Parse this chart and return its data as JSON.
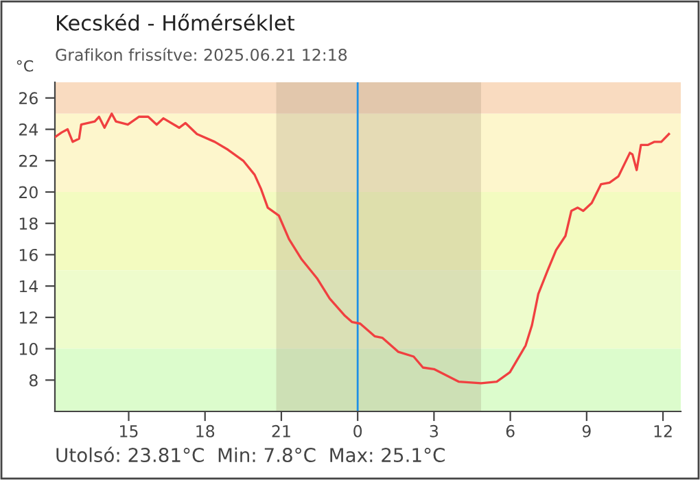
{
  "chart_data": {
    "type": "line",
    "title": "Kecskéd - Hőmérséklet",
    "subtitle": "Grafikon frissítve: 2025.06.21 12:18",
    "ylabel": "°C",
    "annotations": [
      "Utolsó: 23.81°C  Min: 7.8°C  Max: 25.1°C"
    ],
    "series": [
      {
        "color": "#f04040",
        "x": [
          "2025-06-20T12:06",
          "2025-06-20T12:22",
          "2025-06-20T12:36",
          "2025-06-20T12:48",
          "2025-06-20T13:03",
          "2025-06-20T13:08",
          "2025-06-20T13:40",
          "2025-06-20T13:50",
          "2025-06-20T14:03",
          "2025-06-20T14:20",
          "2025-06-20T14:30",
          "2025-06-20T14:58",
          "2025-06-20T15:24",
          "2025-06-20T15:46",
          "2025-06-20T16:06",
          "2025-06-20T16:22",
          "2025-06-20T16:59",
          "2025-06-20T17:14",
          "2025-06-20T17:41",
          "2025-06-20T18:23",
          "2025-06-20T18:54",
          "2025-06-20T19:30",
          "2025-06-20T19:57",
          "2025-06-20T20:12",
          "2025-06-20T20:28",
          "2025-06-20T20:54",
          "2025-06-20T21:18",
          "2025-06-20T21:48",
          "2025-06-20T22:24",
          "2025-06-20T22:54",
          "2025-06-20T23:30",
          "2025-06-20T23:47",
          "2025-06-21T00:06",
          "2025-06-21T00:40",
          "2025-06-21T00:58",
          "2025-06-21T01:36",
          "2025-06-21T02:12",
          "2025-06-21T02:34",
          "2025-06-21T03:00",
          "2025-06-21T03:58",
          "2025-06-21T04:51",
          "2025-06-21T05:28",
          "2025-06-21T05:59",
          "2025-06-21T06:36",
          "2025-06-21T06:51",
          "2025-06-21T07:06",
          "2025-06-21T07:28",
          "2025-06-21T07:48",
          "2025-06-21T08:10",
          "2025-06-21T08:24",
          "2025-06-21T08:39",
          "2025-06-21T08:52",
          "2025-06-21T09:12",
          "2025-06-21T09:34",
          "2025-06-21T09:54",
          "2025-06-21T10:15",
          "2025-06-21T10:42",
          "2025-06-21T10:48",
          "2025-06-21T10:58",
          "2025-06-21T11:08",
          "2025-06-21T11:24",
          "2025-06-21T11:40",
          "2025-06-21T11:56",
          "2025-06-21T12:14"
        ],
        "values": [
          23.5,
          23.8,
          24.0,
          23.2,
          23.4,
          24.3,
          24.5,
          24.8,
          24.1,
          25.0,
          24.5,
          24.3,
          24.8,
          24.8,
          24.3,
          24.7,
          24.1,
          24.4,
          23.7,
          23.2,
          22.7,
          22.0,
          21.1,
          20.2,
          19.0,
          18.5,
          17.0,
          15.7,
          14.5,
          13.2,
          12.1,
          11.7,
          11.6,
          10.8,
          10.7,
          9.8,
          9.5,
          8.8,
          8.7,
          7.9,
          7.8,
          7.9,
          8.5,
          10.2,
          11.5,
          13.5,
          15.0,
          16.3,
          17.2,
          18.8,
          19.0,
          18.8,
          19.3,
          20.5,
          20.6,
          21.0,
          22.5,
          22.4,
          21.4,
          23.0,
          23.0,
          23.2,
          23.2,
          23.7
        ]
      }
    ],
    "xlim": [
      "2025-06-20T12:06",
      "2025-06-21T12:42"
    ],
    "xticks": [
      {
        "value": "2025-06-20T15:00",
        "label": "15"
      },
      {
        "value": "2025-06-20T18:00",
        "label": "18"
      },
      {
        "value": "2025-06-20T21:00",
        "label": "21"
      },
      {
        "value": "2025-06-21T00:00",
        "label": "0"
      },
      {
        "value": "2025-06-21T03:00",
        "label": "3"
      },
      {
        "value": "2025-06-21T06:00",
        "label": "6"
      },
      {
        "value": "2025-06-21T09:00",
        "label": "9"
      },
      {
        "value": "2025-06-21T12:00",
        "label": "12"
      }
    ],
    "ylim": [
      6,
      27
    ],
    "yticks": [
      8,
      10,
      12,
      14,
      16,
      18,
      20,
      22,
      24,
      26
    ],
    "bands": [
      {
        "axis": "y",
        "from": 25,
        "to": 27,
        "color": "#f9dbc0"
      },
      {
        "axis": "y",
        "from": 20,
        "to": 25,
        "color": "#fdf6cc"
      },
      {
        "axis": "y",
        "from": 15,
        "to": 20,
        "color": "#f3fbc0"
      },
      {
        "axis": "y",
        "from": 10,
        "to": 15,
        "color": "#eefccc"
      },
      {
        "axis": "y",
        "from": 6,
        "to": 10,
        "color": "#dcfccc"
      },
      {
        "axis": "x",
        "from": "2025-06-20T20:48",
        "to": "2025-06-21T04:51",
        "color": "#a08c6e"
      }
    ],
    "ref_lines": [
      {
        "axis": "x",
        "value": "2025-06-21T00:00",
        "color": "#1e90e6",
        "line_style": "solid"
      }
    ],
    "grid": false,
    "legend": false,
    "marker": "none",
    "line_style": "solid"
  }
}
